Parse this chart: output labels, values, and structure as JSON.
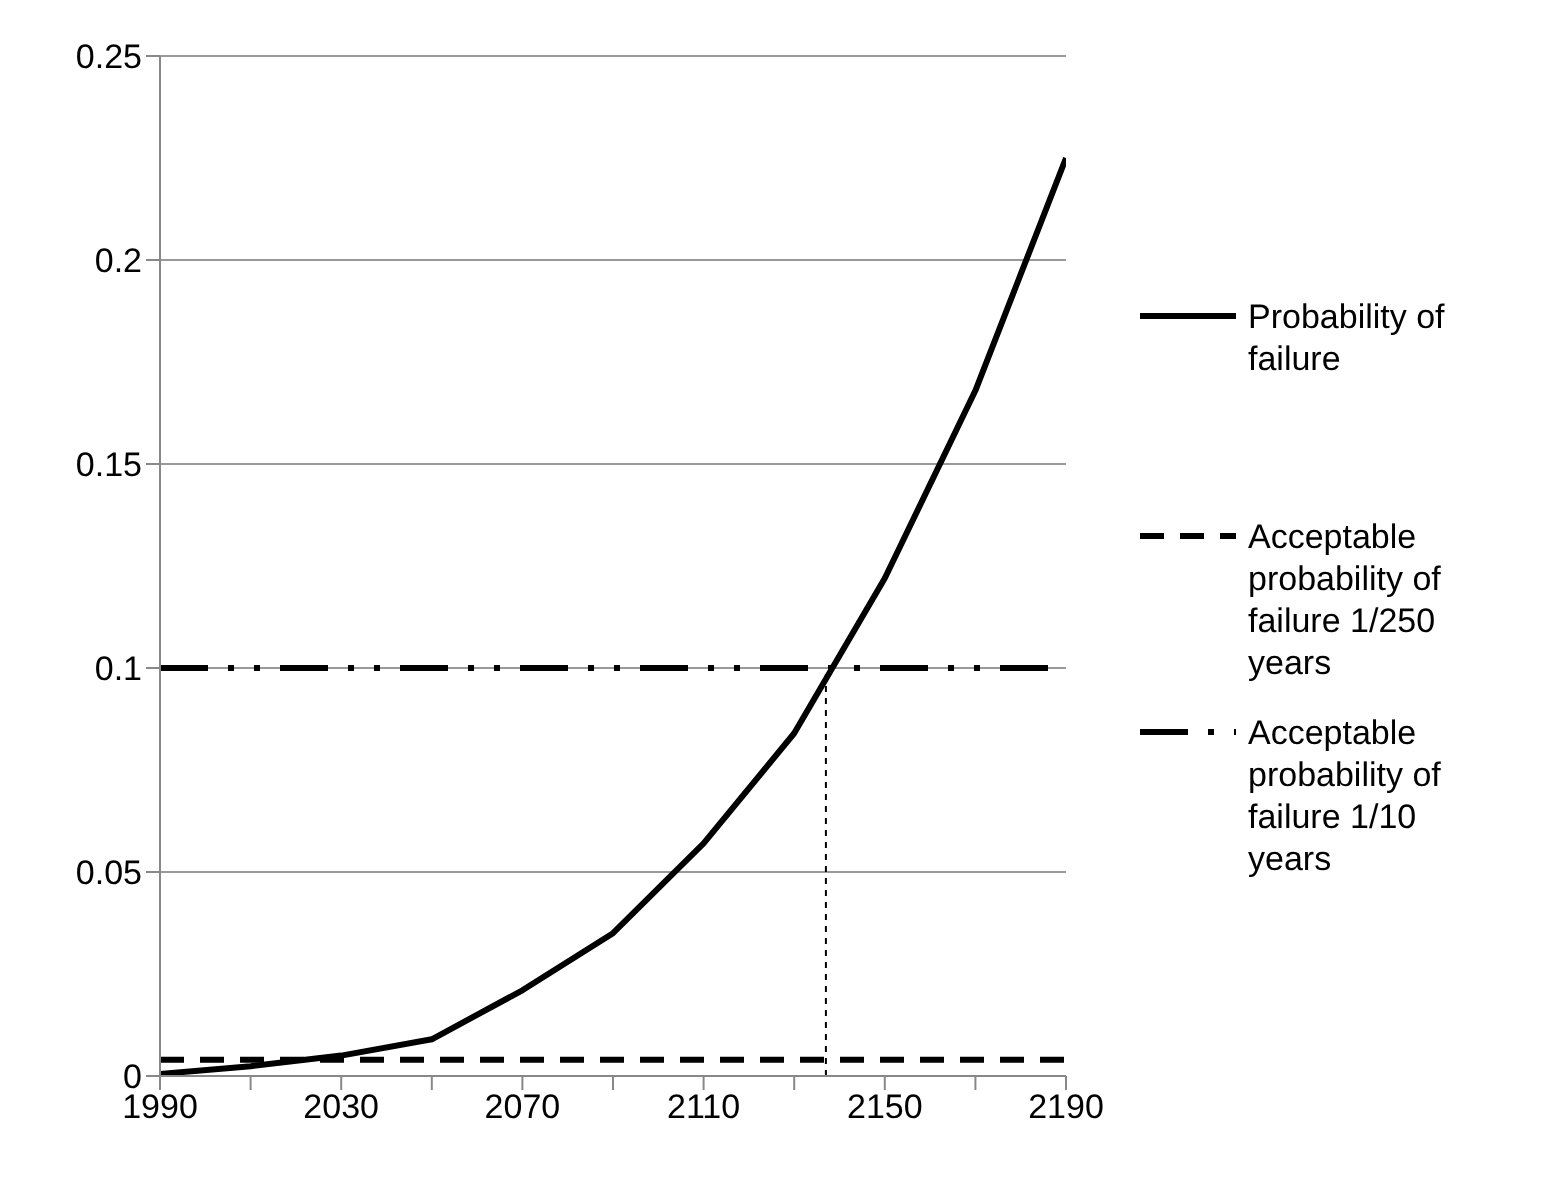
{
  "chart_data": {
    "type": "line",
    "xlim": [
      1990,
      2190
    ],
    "xticks": [
      1990,
      {
        "value": 2010,
        "label": null
      },
      2030,
      {
        "value": 2050,
        "label": null
      },
      2070,
      {
        "value": 2090,
        "label": null
      },
      2110,
      {
        "value": 2130,
        "label": null
      },
      2150,
      {
        "value": 2170,
        "label": null
      },
      2190
    ],
    "ylim": [
      0,
      0.25
    ],
    "yticks": [
      0,
      0.05,
      0.1,
      0.15,
      0.2,
      0.25
    ],
    "grid": "y",
    "legend": "right",
    "marker": "none",
    "series": [
      {
        "name": "Probability of failure",
        "color": "#000000",
        "line_style": "solid",
        "x": [
          1990,
          2010,
          2030,
          2050,
          2070,
          2090,
          2110,
          2130,
          2150,
          2170,
          2190
        ],
        "values": [
          0.0005,
          0.0024,
          0.005,
          0.009,
          0.021,
          0.035,
          0.057,
          0.084,
          0.122,
          0.168,
          0.225
        ]
      },
      {
        "name": "Acceptable probability of failure 1/250 years",
        "color": "#000000",
        "line_style": "dashed",
        "x": [
          1990,
          2190
        ],
        "values": [
          0.004,
          0.004
        ]
      },
      {
        "name": "Acceptable probability of failure 1/10 years",
        "color": "#000000",
        "line_style": "dashdot",
        "x": [
          1990,
          2190
        ],
        "values": [
          0.1,
          0.1
        ]
      },
      {
        "color": "#000000",
        "line_style": "dotted",
        "x": [
          2137,
          2137
        ],
        "values": [
          0,
          0.1
        ]
      }
    ]
  }
}
